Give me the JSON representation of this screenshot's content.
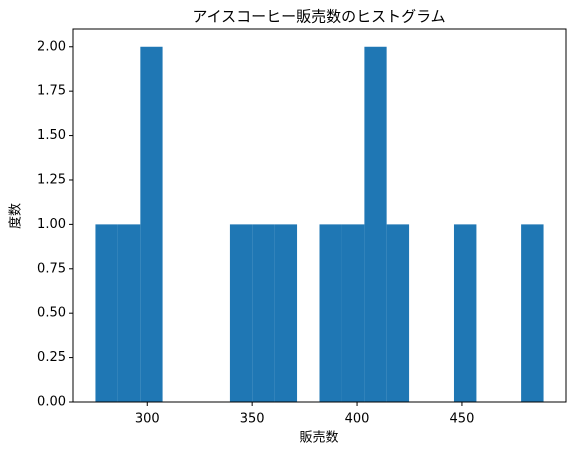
{
  "chart_data": {
    "type": "histogram",
    "title": "アイスコーヒー販売数のヒストグラム",
    "x_label": "販売数",
    "y_label": "度数",
    "bins": [
      275.3,
      286.0,
      296.7,
      307.3,
      318.0,
      328.7,
      339.4,
      350.1,
      360.7,
      371.4,
      382.1,
      392.8,
      403.5,
      414.1,
      424.8,
      435.5,
      446.2,
      456.9,
      467.5,
      478.2,
      488.9
    ],
    "values": [
      1,
      1,
      2,
      0,
      0,
      0,
      1,
      1,
      1,
      0,
      1,
      1,
      2,
      1,
      0,
      0,
      1,
      0,
      0,
      1
    ],
    "color": "#1f77b4",
    "xlim": [
      264.6,
      499.6
    ],
    "xticks": [
      300,
      350,
      400,
      450
    ],
    "ylim": [
      0,
      2.1
    ],
    "yticks": [
      {
        "value": 0,
        "label": "0.00"
      },
      {
        "value": 0.25,
        "label": "0.25"
      },
      {
        "value": 0.5,
        "label": "0.50"
      },
      {
        "value": 0.75,
        "label": "0.75"
      },
      {
        "value": 1,
        "label": "1.00"
      },
      {
        "value": 1.25,
        "label": "1.25"
      },
      {
        "value": 1.5,
        "label": "1.50"
      },
      {
        "value": 1.75,
        "label": "1.75"
      },
      {
        "value": 2,
        "label": "2.00"
      }
    ]
  }
}
